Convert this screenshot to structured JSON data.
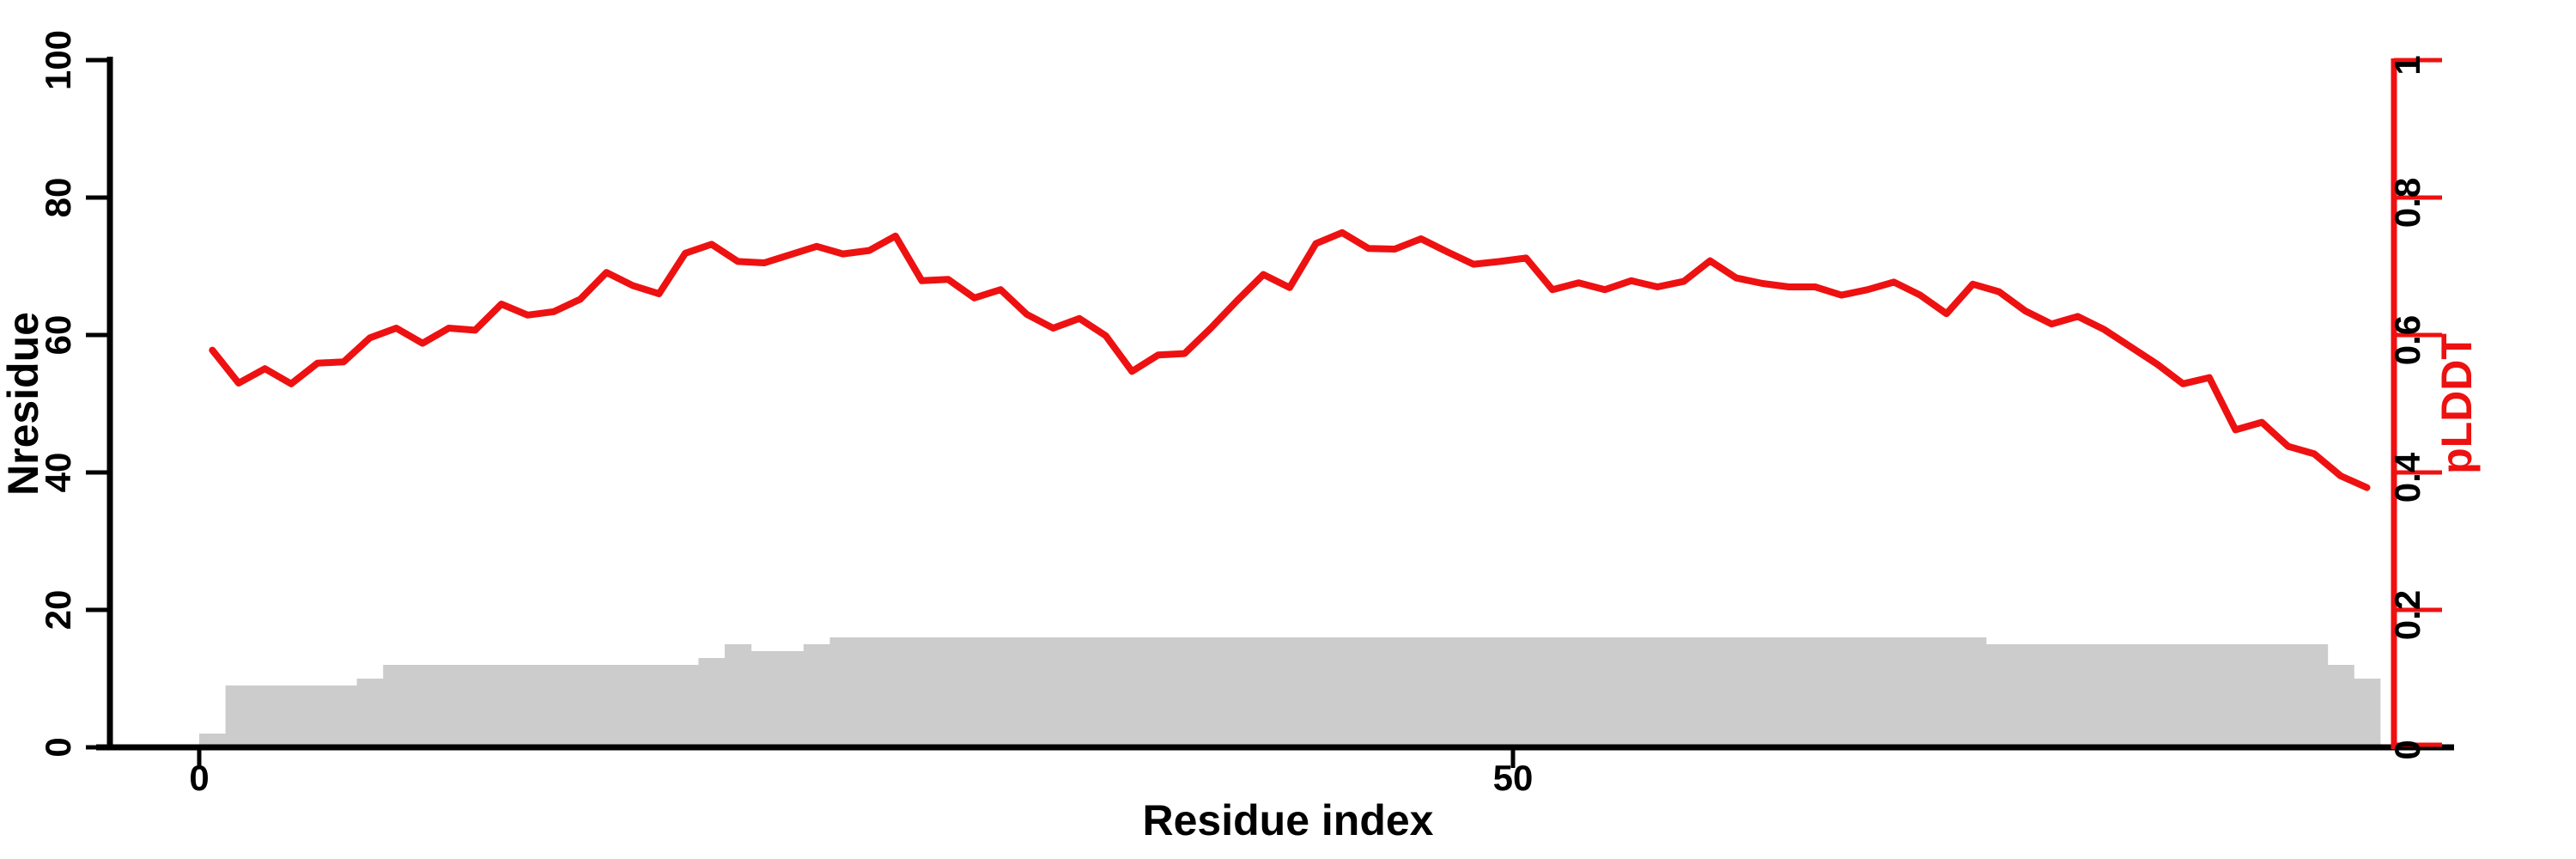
{
  "figure": {
    "background": "#ffffff"
  },
  "chart_data": {
    "type": "line+bar",
    "title": "",
    "xlabel": "Residue index",
    "x_axis": {
      "tick_values": [
        0,
        50
      ],
      "tick_labels": [
        "0",
        "50"
      ],
      "range": [
        0,
        83.5
      ]
    },
    "left_axis": {
      "label": "Nresidue",
      "tick_values": [
        0,
        20,
        40,
        60,
        80,
        100
      ],
      "tick_labels": [
        "0",
        "20",
        "40",
        "60",
        "80",
        "100"
      ],
      "range": [
        0,
        100
      ],
      "color": "#000000"
    },
    "right_axis": {
      "label": "pLDDT",
      "tick_values": [
        0,
        0.2,
        0.4,
        0.6,
        0.8,
        1
      ],
      "tick_labels": [
        "0",
        "0.2",
        "0.4",
        "0.6",
        "0.8",
        "1"
      ],
      "range": [
        0,
        1
      ],
      "color": "#ee1111"
    },
    "x": [
      1,
      2,
      3,
      4,
      5,
      6,
      7,
      8,
      9,
      10,
      11,
      12,
      13,
      14,
      15,
      16,
      17,
      18,
      19,
      20,
      21,
      22,
      23,
      24,
      25,
      26,
      27,
      28,
      29,
      30,
      31,
      32,
      33,
      34,
      35,
      36,
      37,
      38,
      39,
      40,
      41,
      42,
      43,
      44,
      45,
      46,
      47,
      48,
      49,
      50,
      51,
      52,
      53,
      54,
      55,
      56,
      57,
      58,
      59,
      60,
      61,
      62,
      63,
      64,
      65,
      66,
      67,
      68,
      69,
      70,
      71,
      72,
      73,
      74,
      75,
      76,
      77,
      78,
      79,
      80,
      81,
      82,
      83
    ],
    "series": [
      {
        "name": "Nresidue",
        "type": "bar",
        "axis": "left",
        "color": "#cccccc",
        "values": [
          2,
          9,
          9,
          9,
          9,
          9,
          10,
          12,
          12,
          12,
          12,
          12,
          12,
          12,
          12,
          12,
          12,
          12,
          12,
          13,
          15,
          14,
          14,
          15,
          16,
          16,
          16,
          16,
          16,
          16,
          16,
          16,
          16,
          16,
          16,
          16,
          16,
          16,
          16,
          16,
          16,
          16,
          16,
          16,
          16,
          16,
          16,
          16,
          16,
          16,
          16,
          16,
          16,
          16,
          16,
          16,
          16,
          16,
          16,
          16,
          16,
          16,
          16,
          16,
          16,
          16,
          16,
          16,
          15,
          15,
          15,
          15,
          15,
          15,
          15,
          15,
          15,
          15,
          15,
          15,
          15,
          12,
          10
        ]
      },
      {
        "name": "pLDDT",
        "type": "line",
        "axis": "right",
        "color": "#ee1111",
        "values": [
          0.578,
          0.53,
          0.551,
          0.529,
          0.559,
          0.561,
          0.596,
          0.61,
          0.588,
          0.61,
          0.607,
          0.645,
          0.629,
          0.634,
          0.652,
          0.691,
          0.672,
          0.66,
          0.719,
          0.732,
          0.707,
          0.705,
          0.717,
          0.729,
          0.718,
          0.723,
          0.744,
          0.679,
          0.681,
          0.654,
          0.666,
          0.63,
          0.61,
          0.624,
          0.599,
          0.547,
          0.571,
          0.573,
          0.61,
          0.65,
          0.688,
          0.669,
          0.733,
          0.749,
          0.726,
          0.725,
          0.74,
          0.721,
          0.703,
          0.707,
          0.712,
          0.666,
          0.676,
          0.666,
          0.679,
          0.67,
          0.678,
          0.708,
          0.683,
          0.675,
          0.67,
          0.67,
          0.658,
          0.666,
          0.677,
          0.658,
          0.631,
          0.674,
          0.663,
          0.635,
          0.616,
          0.627,
          0.608,
          0.583,
          0.558,
          0.529,
          0.538,
          0.462,
          0.473,
          0.438,
          0.427,
          0.395,
          0.378
        ]
      }
    ]
  }
}
